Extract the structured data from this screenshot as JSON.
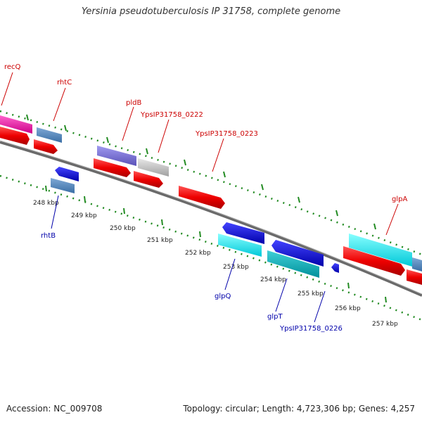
{
  "title": "Yersinia pseudotuberculosis IP 31758, complete genome",
  "footer": {
    "accession": "Accession: NC_009708",
    "summary": "Topology: circular; Length: 4,723,306 bp; Genes: 4,257"
  },
  "colors": {
    "backbone": "#808080",
    "tick": "#228b22",
    "red_label": "#cc0000",
    "blue_label": "#0000aa"
  },
  "ticks": [
    {
      "label": "248 kbp"
    },
    {
      "label": "249 kbp"
    },
    {
      "label": "250 kbp"
    },
    {
      "label": "251 kbp"
    },
    {
      "label": "252 kbp"
    },
    {
      "label": "253 kbp"
    },
    {
      "label": "254 kbp"
    },
    {
      "label": "255 kbp"
    },
    {
      "label": "256 kbp"
    },
    {
      "label": "257 kbp"
    }
  ],
  "genes_top": [
    {
      "label": "recQ"
    },
    {
      "label": "rhtC"
    },
    {
      "label": "pldB"
    },
    {
      "label": "YpsIP31758_0222"
    },
    {
      "label": "YpsIP31758_0223"
    },
    {
      "label": "glpA"
    }
  ],
  "genes_bottom": [
    {
      "label": "rhtB"
    },
    {
      "label": "glpQ"
    },
    {
      "label": "glpT"
    },
    {
      "label": "YpsIP31758_0226"
    }
  ]
}
